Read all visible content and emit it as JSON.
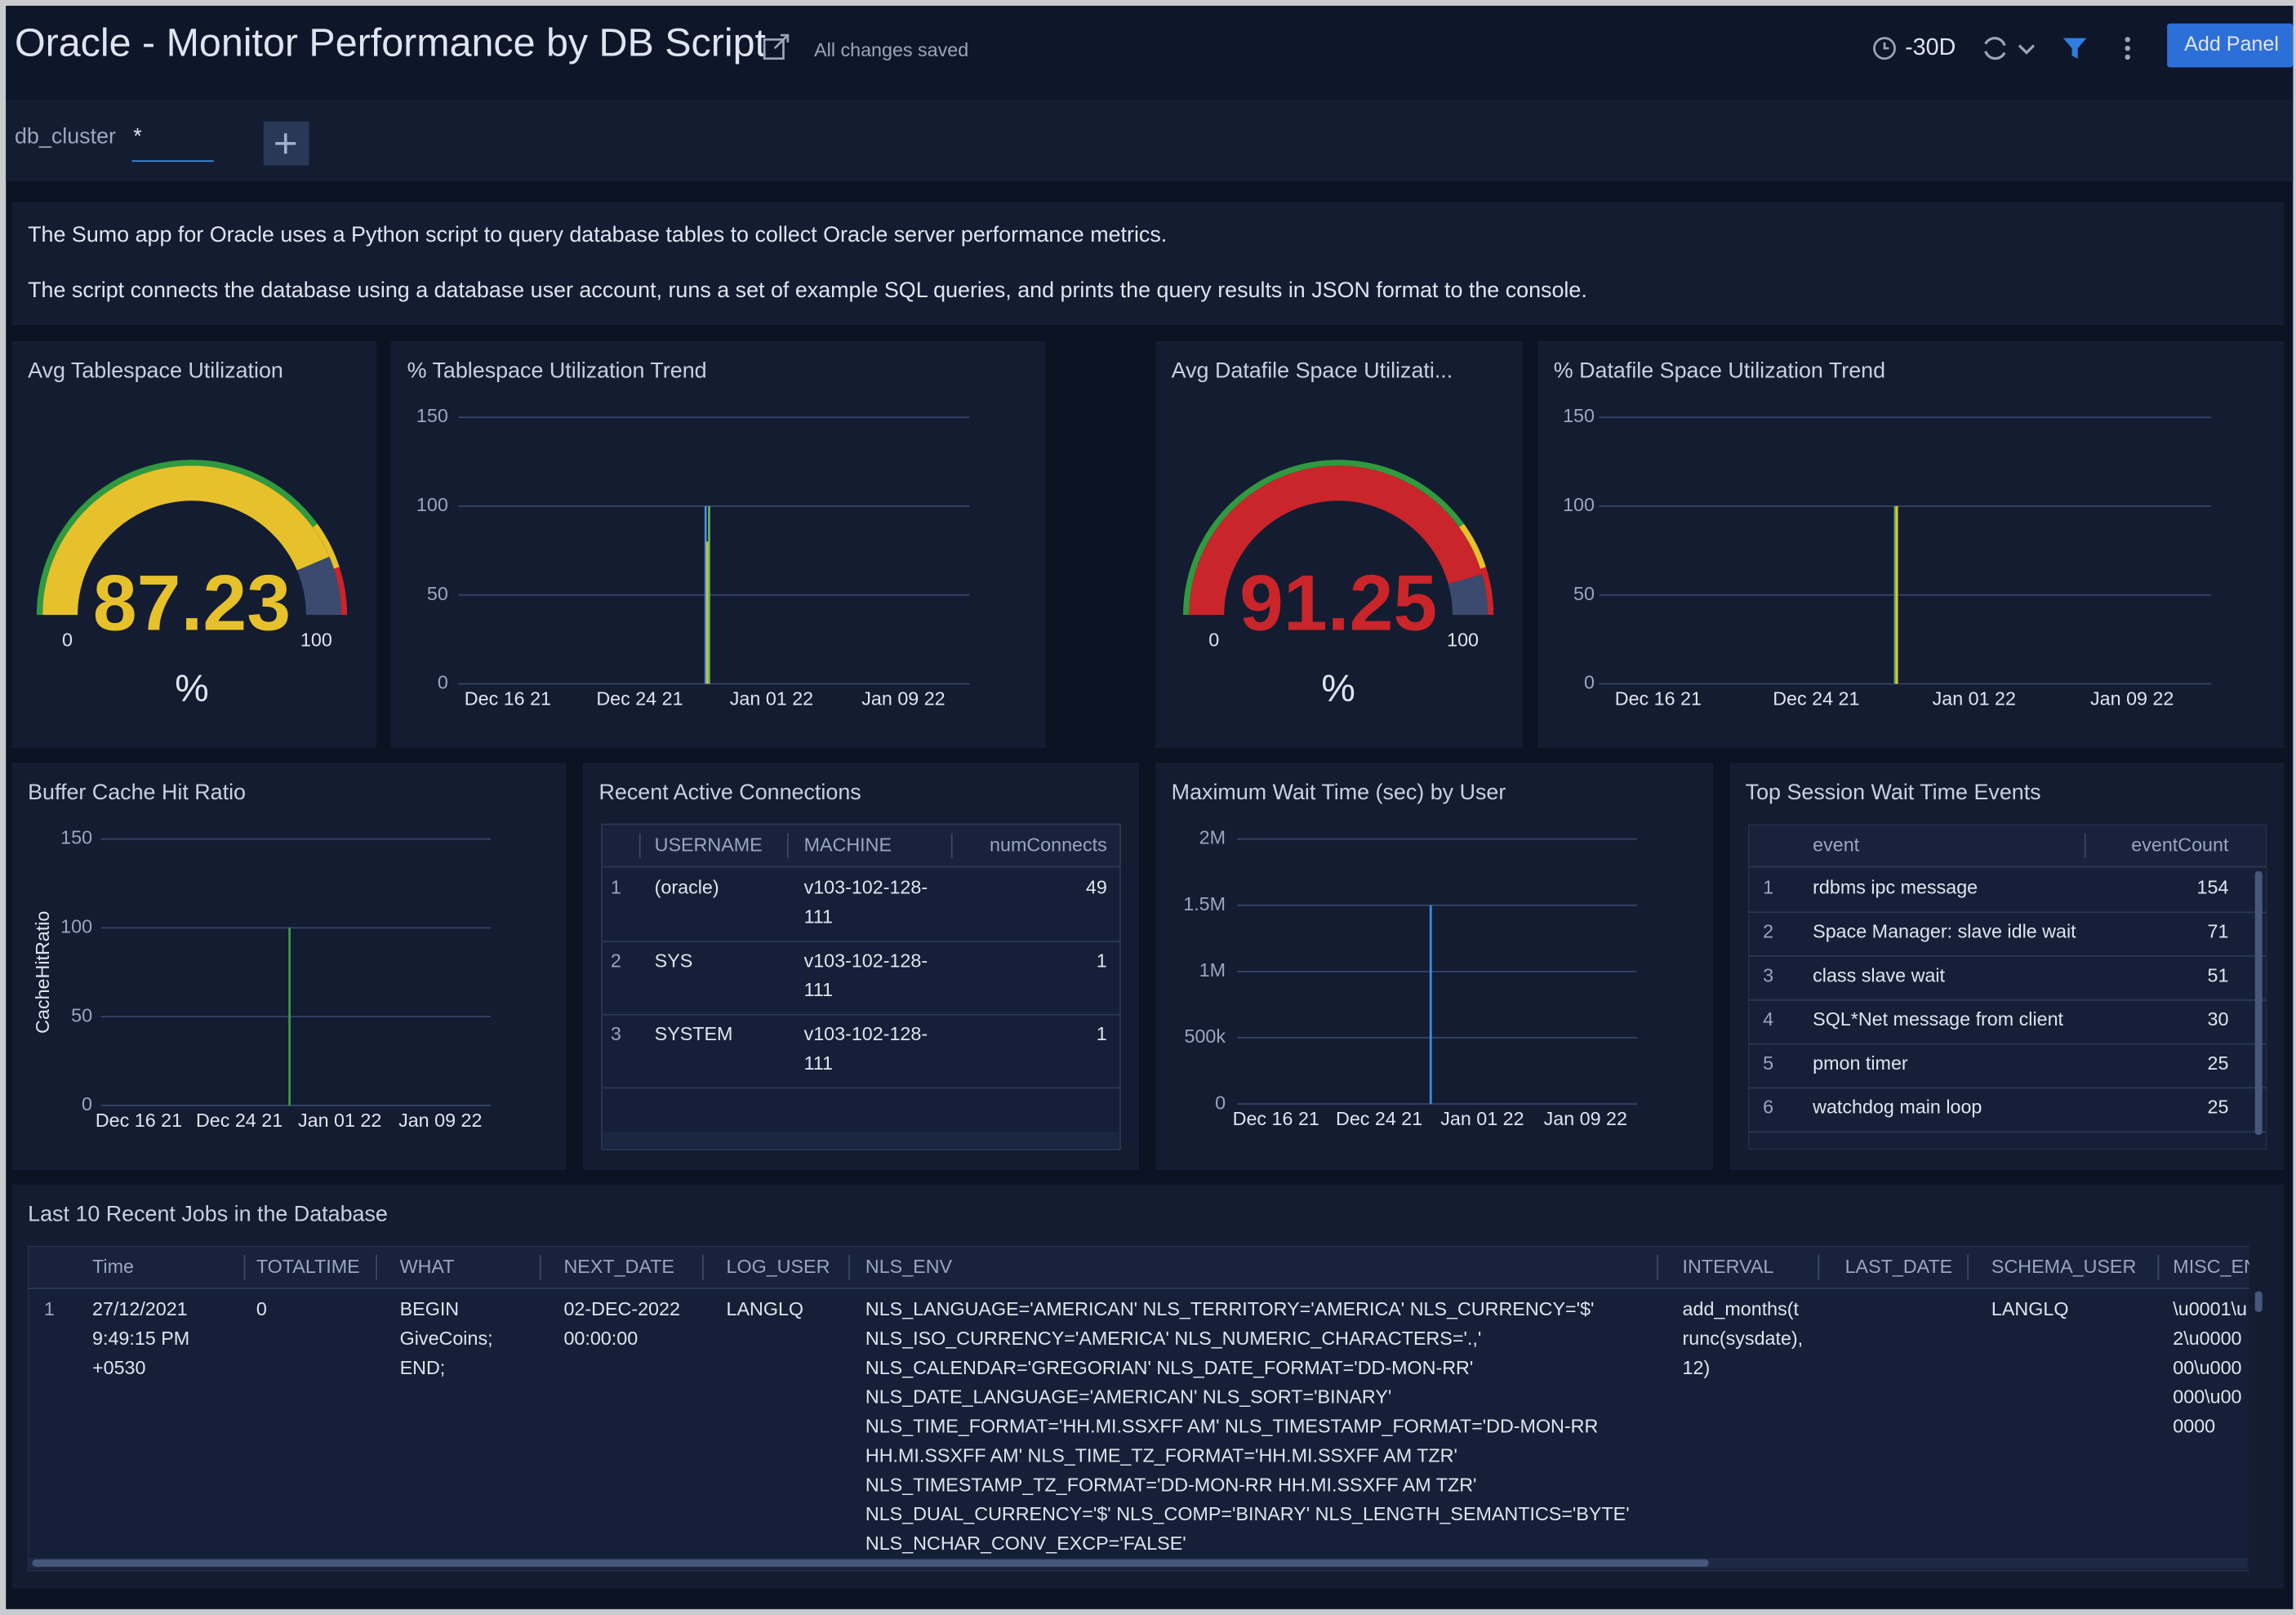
{
  "header": {
    "title": "Oracle - Monitor Performance by DB Script",
    "status": "All changes saved",
    "time_range": "-30D",
    "add_panel": "Add Panel"
  },
  "filter": {
    "name": "db_cluster",
    "value": "*"
  },
  "description": [
    "The Sumo app for Oracle uses a Python script to query database tables to collect Oracle server performance metrics.",
    "The script connects the database using a database user account, runs a set of example SQL queries, and prints the query results in JSON format to the console."
  ],
  "panels": [
    {
      "title": "Avg Tablespace Utilization",
      "chart_data": {
        "type": "gauge",
        "value": 87.23,
        "lim": [
          0,
          100
        ],
        "unit": "%",
        "color": "#e6c12b"
      }
    },
    {
      "title": "% Tablespace Utilization Trend",
      "chart_data": {
        "type": "stem",
        "xlim": [
          "Dec 13 21",
          "Jan 13 22"
        ],
        "xticks": [
          "Dec 16 21",
          "Dec 24 21",
          "Jan 01 22",
          "Jan 09 22"
        ],
        "ylim": [
          0,
          150
        ],
        "yticks": [
          0,
          50,
          100,
          150
        ],
        "grid": true,
        "series": [
          {
            "color": "#4a90d9",
            "x": [
              "Dec 28 21"
            ],
            "values": [
              100
            ]
          },
          {
            "color": "#e6c12b",
            "x": [
              "Dec 28 21"
            ],
            "values": [
              80
            ]
          },
          {
            "color": "#5fb85f",
            "x": [
              "Dec 28 21"
            ],
            "values": [
              100
            ]
          }
        ]
      }
    },
    {
      "title": "Avg Datafile Space Utilizati...",
      "chart_data": {
        "type": "gauge",
        "value": 91.25,
        "lim": [
          0,
          100
        ],
        "unit": "%",
        "color": "#c9252a"
      }
    },
    {
      "title": "% Datafile Space Utilization Trend",
      "chart_data": {
        "type": "stem",
        "xlim": [
          "Dec 13 21",
          "Jan 13 22"
        ],
        "xticks": [
          "Dec 16 21",
          "Dec 24 21",
          "Jan 01 22",
          "Jan 09 22"
        ],
        "ylim": [
          0,
          150
        ],
        "yticks": [
          0,
          50,
          100,
          150
        ],
        "grid": true,
        "series": [
          {
            "color": "#5fb85f",
            "x": [
              "Dec 28 21"
            ],
            "values": [
              100
            ]
          },
          {
            "color": "#e6c12b",
            "x": [
              "Dec 28 21"
            ],
            "values": [
              100
            ]
          }
        ]
      }
    },
    {
      "title": "Buffer Cache Hit Ratio",
      "chart_data": {
        "type": "stem",
        "ylabel": "CacheHitRatio",
        "xlim": [
          "Dec 13 21",
          "Jan 13 22"
        ],
        "xticks": [
          "Dec 16 21",
          "Dec 24 21",
          "Jan 01 22",
          "Jan 09 22"
        ],
        "ylim": [
          0,
          150
        ],
        "yticks": [
          0,
          50,
          100,
          150
        ],
        "grid": true,
        "series": [
          {
            "color": "#3f9a4a",
            "x": [
              "Dec 28 21"
            ],
            "values": [
              100
            ]
          }
        ]
      }
    },
    {
      "title": "Recent Active Connections",
      "table": {
        "columns": [
          "USERNAME",
          "MACHINE",
          "numConnects"
        ],
        "rows": [
          {
            "index": 1,
            "cells": [
              "(oracle)",
              [
                "v103-102-128-",
                "111"
              ],
              49
            ]
          },
          {
            "index": 2,
            "cells": [
              "SYS",
              [
                "v103-102-128-",
                "111"
              ],
              1
            ]
          },
          {
            "index": 3,
            "cells": [
              "SYSTEM",
              [
                "v103-102-128-",
                "111"
              ],
              1
            ]
          }
        ]
      }
    },
    {
      "title": "Maximum Wait Time (sec) by User",
      "chart_data": {
        "type": "stem",
        "xlim": [
          "Dec 13 21",
          "Jan 13 22"
        ],
        "xticks": [
          "Dec 16 21",
          "Dec 24 21",
          "Jan 01 22",
          "Jan 09 22"
        ],
        "ylim": [
          0,
          2000000
        ],
        "yticks": [
          0,
          {
            "value": 500000,
            "label": "500k"
          },
          {
            "value": 1000000,
            "label": "1M"
          },
          {
            "value": 1500000,
            "label": "1.5M"
          },
          {
            "value": 2000000,
            "label": "2M"
          }
        ],
        "grid": true,
        "series": [
          {
            "color": "#3d8fe0",
            "x": [
              "Dec 28 21"
            ],
            "values": [
              1500000
            ]
          }
        ]
      }
    },
    {
      "title": "Top Session Wait Time Events",
      "table": {
        "columns": [
          "event",
          "eventCount"
        ],
        "rows": [
          {
            "index": 1,
            "cells": [
              "rdbms ipc message",
              154
            ]
          },
          {
            "index": 2,
            "cells": [
              "Space Manager: slave idle wait",
              71
            ]
          },
          {
            "index": 3,
            "cells": [
              "class slave wait",
              51
            ]
          },
          {
            "index": 4,
            "cells": [
              "SQL*Net message from client",
              30
            ]
          },
          {
            "index": 5,
            "cells": [
              "pmon timer",
              25
            ]
          },
          {
            "index": 6,
            "cells": [
              "watchdog main loop",
              25
            ]
          }
        ]
      }
    },
    {
      "title": "Last 10 Recent Jobs in the Database",
      "table": {
        "columns": [
          "Time",
          "TOTALTIME",
          "WHAT",
          "NEXT_DATE",
          "LOG_USER",
          "NLS_ENV",
          "INTERVAL",
          "LAST_DATE",
          "SCHEMA_USER",
          "MISC_ENV"
        ],
        "rows": [
          {
            "index": 1,
            "cells": [
              [
                "27/12/2021",
                "9:49:15 PM",
                "+0530"
              ],
              0,
              [
                "BEGIN",
                "GiveCoins;",
                "END;"
              ],
              [
                "02-DEC-2022",
                "00:00:00"
              ],
              "LANGLQ",
              [
                "NLS_LANGUAGE='AMERICAN' NLS_TERRITORY='AMERICA' NLS_CURRENCY='$'",
                "NLS_ISO_CURRENCY='AMERICA' NLS_NUMERIC_CHARACTERS='.,'",
                "NLS_CALENDAR='GREGORIAN' NLS_DATE_FORMAT='DD-MON-RR'",
                "NLS_DATE_LANGUAGE='AMERICAN' NLS_SORT='BINARY'",
                "NLS_TIME_FORMAT='HH.MI.SSXFF AM' NLS_TIMESTAMP_FORMAT='DD-MON-RR",
                "HH.MI.SSXFF AM' NLS_TIME_TZ_FORMAT='HH.MI.SSXFF AM TZR'",
                "NLS_TIMESTAMP_TZ_FORMAT='DD-MON-RR HH.MI.SSXFF AM TZR'",
                "NLS_DUAL_CURRENCY='$' NLS_COMP='BINARY' NLS_LENGTH_SEMANTICS='BYTE'",
                "NLS_NCHAR_CONV_EXCP='FALSE'"
              ],
              [
                "add_months(t",
                "runc(sysdate),",
                "12)"
              ],
              null,
              "LANGLQ",
              [
                "\\u0001\\u",
                "2\\u0000",
                "00\\u000",
                "000\\u00",
                "0000"
              ]
            ]
          }
        ]
      }
    }
  ]
}
